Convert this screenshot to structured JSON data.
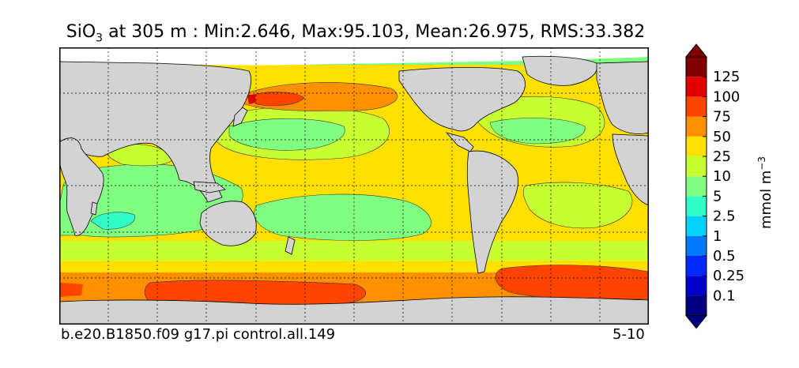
{
  "title": {
    "species": "SiO",
    "subscript": "3",
    "rest": " at 305 m : Min:2.646, Max:95.103, Mean:26.975, RMS:33.382"
  },
  "footer": {
    "case_name": "b.e20.B1850.f09 g17.pi control.all.149",
    "years": "5-10"
  },
  "colorbar": {
    "unit": "mmol m",
    "unit_exponent": "−3",
    "levels": [
      "0.1",
      "0.25",
      "0.5",
      "1",
      "2.5",
      "5",
      "10",
      "25",
      "50",
      "75",
      "100",
      "125"
    ],
    "colors": [
      "#000080",
      "#0000c8",
      "#0028ff",
      "#0078ff",
      "#00d2ff",
      "#32ffc8",
      "#80ff80",
      "#c8ff32",
      "#ffe000",
      "#ff9000",
      "#ff4400",
      "#e00000",
      "#800000"
    ],
    "extend": "both"
  },
  "map": {
    "land_color": "#d3d3d3",
    "grid": "dotted"
  }
}
